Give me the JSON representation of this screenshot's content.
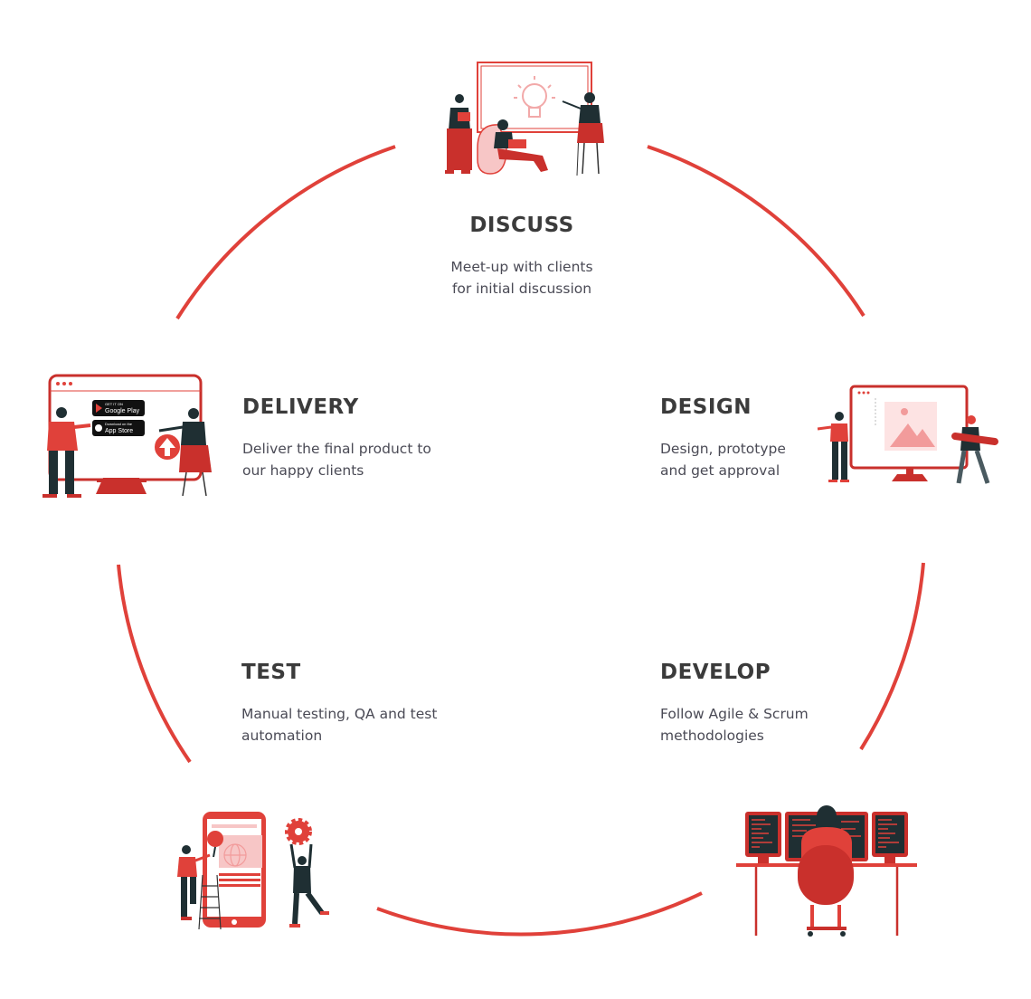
{
  "colors": {
    "accent": "#e0413a",
    "dark": "#1f2f33",
    "pink": "#f7c6c6",
    "heading": "#3b3b3b",
    "text": "#4a4a55"
  },
  "steps": {
    "discuss": {
      "title": "DISCUSS",
      "line1": "Meet-up with clients",
      "line2": "for initial discussion",
      "illustration": "team-meeting-whiteboard-lightbulb"
    },
    "delivery": {
      "title": "DELIVERY",
      "line1": "Deliver the final product to",
      "line2": "our happy clients",
      "illustration": "monitor-app-store-upload"
    },
    "design": {
      "title": "DESIGN",
      "line1": "Design, prototype",
      "line2": "and get approval",
      "illustration": "monitor-design-image"
    },
    "test": {
      "title": "TEST",
      "line1": "Manual testing, QA and test",
      "line2": "automation",
      "illustration": "phone-magnifier-gear"
    },
    "develop": {
      "title": "DEVELOP",
      "line1": "Follow Agile & Scrum",
      "line2": "methodologies",
      "illustration": "developer-at-desk-monitors"
    }
  },
  "badges": {
    "google_play_small": "GET IT ON",
    "google_play": "Google Play",
    "app_store_small": "Download on the",
    "app_store": "App Store"
  }
}
